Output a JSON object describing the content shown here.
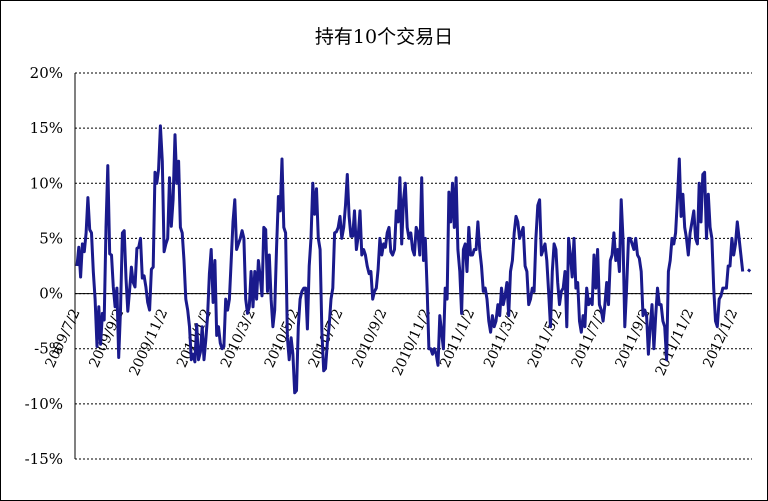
{
  "chart_data": {
    "type": "line",
    "title": "持有10个交易日",
    "xlabel": "",
    "ylabel": "",
    "ylim": [
      -15,
      20
    ],
    "y_ticks": [
      "20%",
      "15%",
      "10%",
      "5%",
      "0%",
      "-5%",
      "-10%",
      "-15%"
    ],
    "x_tick_labels": [
      "2009/7/2",
      "2009/9/2",
      "2009/11/2",
      "2010/1/2",
      "2010/3/2",
      "2010/5/2",
      "2010/7/2",
      "2010/9/2",
      "2010/11/2",
      "2011/1/2",
      "2011/3/2",
      "2011/5/2",
      "2011/7/2",
      "2011/9/2",
      "2011/11/2",
      "2012/1/2"
    ],
    "grid": "horizontal dashed",
    "legend": "none",
    "line_color": "#1a1a8c",
    "series": [
      {
        "values": [
          2.5,
          4.2,
          1.5,
          4.5,
          3.8,
          5.5,
          8.7,
          5.8,
          5.5,
          2.0,
          -0.5,
          -4.8,
          -1.2,
          -4.6,
          -1.8,
          -2.4,
          6.0,
          11.6,
          3.6,
          3.5,
          0.6,
          -1.2,
          0.5,
          -5.8,
          -1.5,
          5.5,
          5.7,
          1.4,
          -1.6,
          0.3,
          2.4,
          1.0,
          0.6,
          4.1,
          4.2,
          5.0,
          1.4,
          1.6,
          0.6,
          -0.8,
          -1.5,
          2.2,
          2.4,
          11.0,
          10.0,
          11.3,
          15.2,
          12.0,
          3.8,
          4.5,
          5.0,
          10.5,
          6.1,
          8.5,
          14.4,
          10.0,
          12.0,
          6.0,
          5.5,
          3.0,
          -0.5,
          -1.5,
          -3.0,
          -6.0,
          -5.5,
          -6.2,
          -2.8,
          -6.0,
          -5.3,
          -3.0,
          -6.0,
          -4.2,
          -2.0,
          1.8,
          4.0,
          -0.8,
          3.0,
          -3.8,
          -3.0,
          -4.5,
          -5.0,
          -4.8,
          -0.5,
          -1.5,
          -0.5,
          3.0,
          6.5,
          8.5,
          4.0,
          4.5,
          5.0,
          5.7,
          5.0,
          -0.5,
          -1.8,
          -1.2,
          2.0,
          -1.2,
          2.0,
          -0.5,
          3.0,
          1.5,
          -0.2,
          6.0,
          5.8,
          0.2,
          3.5,
          -0.5,
          -3.0,
          -1.5,
          4.0,
          8.8,
          7.5,
          12.2,
          6.0,
          5.5,
          -4.0,
          -6.0,
          -4.0,
          -5.5,
          -9.0,
          -8.8,
          -3.0,
          -0.5,
          0.2,
          0.5,
          0.5,
          -3.2,
          2.5,
          5.0,
          10.0,
          7.2,
          9.5,
          5.0,
          4.0,
          -3.5,
          -7.0,
          -6.8,
          -4.5,
          -3.0,
          -0.5,
          0.5,
          5.5,
          5.6,
          6.0,
          7.0,
          5.0,
          6.0,
          8.0,
          10.8,
          7.0,
          5.2,
          5.2,
          7.5,
          4.0,
          5.2,
          7.5,
          3.5,
          4.0,
          3.5,
          2.5,
          1.8,
          2.0,
          -0.5,
          0.2,
          0.5,
          2.2,
          5.0,
          3.5,
          4.5,
          4.2,
          5.5,
          6.0,
          3.8,
          3.5,
          4.0,
          7.5,
          6.5,
          10.5,
          4.5,
          8.5,
          10.0,
          6.0,
          5.0,
          5.5,
          4.0,
          3.5,
          6.0,
          5.5,
          3.5,
          10.5,
          3.0,
          5.0,
          0.5,
          -5.0,
          -5.0,
          -5.5,
          -5.0,
          -5.5,
          -6.5,
          -2.0,
          -3.5,
          -5.0,
          0.5,
          -0.5,
          9.2,
          6.5,
          10.0,
          6.0,
          10.5,
          4.0,
          2.0,
          -1.8,
          4.0,
          4.5,
          2.0,
          6.0,
          3.5,
          3.5,
          4.0,
          4.0,
          6.5,
          4.0,
          2.5,
          0.2,
          0.5,
          -0.5,
          -2.5,
          -3.5,
          -2.0,
          -3.0,
          -2.5,
          -1.0,
          -2.0,
          0.5,
          -1.0,
          -0.2,
          1.0,
          -2.0,
          2.0,
          3.0,
          5.5,
          7.0,
          6.5,
          5.0,
          5.5,
          6.0,
          2.5,
          2.0,
          -1.0,
          -0.5,
          0.5,
          0.2,
          5.0,
          8.0,
          8.5,
          3.5,
          4.0,
          4.5,
          3.0,
          0.2,
          -3.0,
          2.0,
          4.5,
          4.0,
          1.0,
          -1.0,
          0.2,
          0.5,
          2.0,
          -3.0,
          5.0,
          3.5,
          1.5,
          5.0,
          0.5,
          1.0,
          -2.5,
          -3.5,
          -2.0,
          -3.0,
          0.5,
          -1.0,
          -0.5,
          -1.0,
          3.5,
          0.5,
          4.0,
          -1.0,
          -1.5,
          -2.5,
          -1.0,
          1.0,
          -1.0,
          3.0,
          3.5,
          5.5,
          3.0,
          4.0,
          2.0,
          8.5,
          5.0,
          -3.0,
          0.5,
          5.0,
          5.0,
          4.5,
          4.0,
          5.0,
          3.5,
          3.2,
          2.0,
          -2.0,
          -1.5,
          -2.0,
          -5.5,
          -3.0,
          -1.0,
          -5.0,
          -2.0,
          0.5,
          -1.0,
          -1.0,
          -2.5,
          -3.0,
          -6.0,
          2.0,
          3.0,
          5.0,
          4.5,
          5.5,
          8.5,
          12.2,
          7.0,
          9.0,
          6.0,
          5.0,
          3.5,
          5.5,
          6.5,
          7.5,
          5.0,
          4.5,
          10.0,
          6.5,
          10.8,
          11.0,
          5.0,
          9.0,
          6.0,
          5.0,
          0.5,
          -2.5,
          -3.0,
          -0.5,
          -0.2,
          0.5,
          0.5,
          0.5,
          2.5,
          2.5,
          5.0,
          3.5,
          4.5,
          6.5,
          5.0,
          3.5,
          2.0,
          null,
          null,
          2.0,
          2.2
        ]
      }
    ]
  }
}
